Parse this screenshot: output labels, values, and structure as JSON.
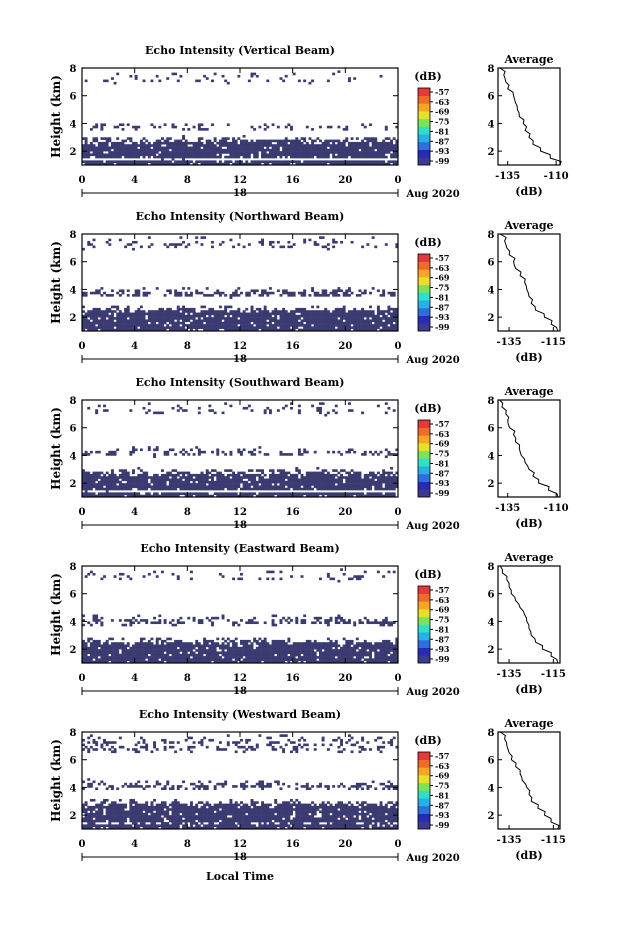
{
  "figure": {
    "xlabel_bottom": "Local Time",
    "x_ticks": [
      "0",
      "4",
      "8",
      "12",
      "16",
      "20",
      "0"
    ],
    "date_marker": "18",
    "date_text": "Aug 2020",
    "y_ticks": [
      "2",
      "4",
      "6",
      "8"
    ],
    "colorbar_unit": "(dB)",
    "colorbar_ticks": [
      "-57",
      "-63",
      "-69",
      "-75",
      "-81",
      "-87",
      "-93",
      "-99"
    ],
    "colorbar_colors": [
      "#3b3b8f",
      "#2a2ab8",
      "#2f6fdc",
      "#27b0e6",
      "#2fe0c8",
      "#7de25a",
      "#e6e02a",
      "#f5a623",
      "#f06a2a",
      "#e23a3a"
    ],
    "fill_color": "#3b3b72",
    "average_title": "Average",
    "average_xlabel": "(dB)"
  },
  "chart_data": [
    {
      "type": "heatmap",
      "title": "Echo Intensity (Vertical Beam)",
      "ylabel": "Height (km)",
      "xlim": [
        0,
        24
      ],
      "ylim": [
        1,
        8
      ],
      "layers": [
        [
          1.5,
          2.8,
          0.2
        ],
        [
          3.6,
          3.8,
          0.55
        ],
        [
          7.0,
          7.5,
          0.12
        ]
      ],
      "average": {
        "x_ticks": [
          "-135",
          "-110"
        ],
        "xlim": [
          -140,
          -108
        ],
        "profile": [
          [
            -108,
            1.0
          ],
          [
            -113,
            1.5
          ],
          [
            -118,
            2.0
          ],
          [
            -122,
            2.5
          ],
          [
            -124,
            3.0
          ],
          [
            -126,
            3.5
          ],
          [
            -127,
            4.0
          ],
          [
            -129,
            4.5
          ],
          [
            -130,
            5.0
          ],
          [
            -131,
            5.5
          ],
          [
            -132,
            6.0
          ],
          [
            -135,
            6.5
          ],
          [
            -136,
            7.0
          ],
          [
            -137,
            7.5
          ],
          [
            -139,
            8.0
          ]
        ]
      }
    },
    {
      "type": "heatmap",
      "title": "Echo Intensity (Northward Beam)",
      "ylabel": "Height (km)",
      "xlim": [
        0,
        24
      ],
      "ylim": [
        1,
        8
      ],
      "layers": [
        [
          1.3,
          2.6,
          0.15
        ],
        [
          3.5,
          3.9,
          0.6
        ],
        [
          7.0,
          7.6,
          0.2
        ]
      ],
      "average": {
        "x_ticks": [
          "-135",
          "-115"
        ],
        "xlim": [
          -140,
          -112
        ],
        "profile": [
          [
            -113,
            1.0
          ],
          [
            -116,
            1.5
          ],
          [
            -119,
            2.0
          ],
          [
            -123,
            2.5
          ],
          [
            -125,
            3.0
          ],
          [
            -126,
            3.5
          ],
          [
            -127,
            4.0
          ],
          [
            -128,
            4.5
          ],
          [
            -130,
            5.0
          ],
          [
            -132,
            5.5
          ],
          [
            -133,
            6.0
          ],
          [
            -135,
            6.5
          ],
          [
            -136,
            7.0
          ],
          [
            -137,
            7.5
          ],
          [
            -139,
            8.0
          ]
        ]
      }
    },
    {
      "type": "heatmap",
      "title": "Echo Intensity (Southward Beam)",
      "ylabel": "Height (km)",
      "xlim": [
        0,
        24
      ],
      "ylim": [
        1,
        8
      ],
      "layers": [
        [
          1.5,
          2.8,
          0.2
        ],
        [
          4.0,
          4.3,
          0.55
        ],
        [
          7.0,
          7.6,
          0.15
        ]
      ],
      "average": {
        "x_ticks": [
          "-135",
          "-110"
        ],
        "xlim": [
          -140,
          -108
        ],
        "profile": [
          [
            -109,
            1.0
          ],
          [
            -114,
            1.5
          ],
          [
            -119,
            2.0
          ],
          [
            -122,
            2.5
          ],
          [
            -124,
            3.0
          ],
          [
            -126,
            3.5
          ],
          [
            -128,
            4.0
          ],
          [
            -129,
            4.5
          ],
          [
            -131,
            5.0
          ],
          [
            -132,
            5.5
          ],
          [
            -134,
            6.0
          ],
          [
            -135,
            6.5
          ],
          [
            -136,
            7.0
          ],
          [
            -138,
            7.5
          ],
          [
            -139,
            8.0
          ]
        ]
      }
    },
    {
      "type": "heatmap",
      "title": "Echo Intensity (Eastward Beam)",
      "ylabel": "Height (km)",
      "xlim": [
        0,
        24
      ],
      "ylim": [
        1,
        8
      ],
      "layers": [
        [
          1.3,
          2.6,
          0.15
        ],
        [
          3.8,
          4.2,
          0.55
        ],
        [
          7.0,
          7.5,
          0.15
        ]
      ],
      "average": {
        "x_ticks": [
          "-135",
          "-115"
        ],
        "xlim": [
          -140,
          -112
        ],
        "profile": [
          [
            -113,
            1.0
          ],
          [
            -116,
            1.5
          ],
          [
            -120,
            2.0
          ],
          [
            -123,
            2.5
          ],
          [
            -125,
            3.0
          ],
          [
            -126,
            3.5
          ],
          [
            -127,
            4.0
          ],
          [
            -128,
            4.5
          ],
          [
            -130,
            5.0
          ],
          [
            -132,
            5.5
          ],
          [
            -134,
            6.0
          ],
          [
            -135,
            6.5
          ],
          [
            -136,
            7.0
          ],
          [
            -138,
            7.5
          ],
          [
            -139,
            8.0
          ]
        ]
      }
    },
    {
      "type": "heatmap",
      "title": "Echo Intensity (Westward Beam)",
      "ylabel": "Height (km)",
      "xlim": [
        0,
        24
      ],
      "ylim": [
        1,
        8
      ],
      "layers": [
        [
          1.4,
          2.9,
          0.2
        ],
        [
          3.9,
          4.3,
          0.5
        ],
        [
          6.6,
          7.6,
          0.25
        ]
      ],
      "average": {
        "x_ticks": [
          "-135",
          "-115"
        ],
        "xlim": [
          -140,
          -112
        ],
        "profile": [
          [
            -113,
            1.0
          ],
          [
            -116,
            1.5
          ],
          [
            -119,
            2.0
          ],
          [
            -122,
            2.5
          ],
          [
            -125,
            3.0
          ],
          [
            -126,
            3.5
          ],
          [
            -127,
            4.0
          ],
          [
            -129,
            4.5
          ],
          [
            -130,
            5.0
          ],
          [
            -132,
            5.5
          ],
          [
            -134,
            6.0
          ],
          [
            -135,
            6.5
          ],
          [
            -136,
            7.0
          ],
          [
            -137,
            7.5
          ],
          [
            -139,
            8.0
          ]
        ]
      }
    }
  ]
}
